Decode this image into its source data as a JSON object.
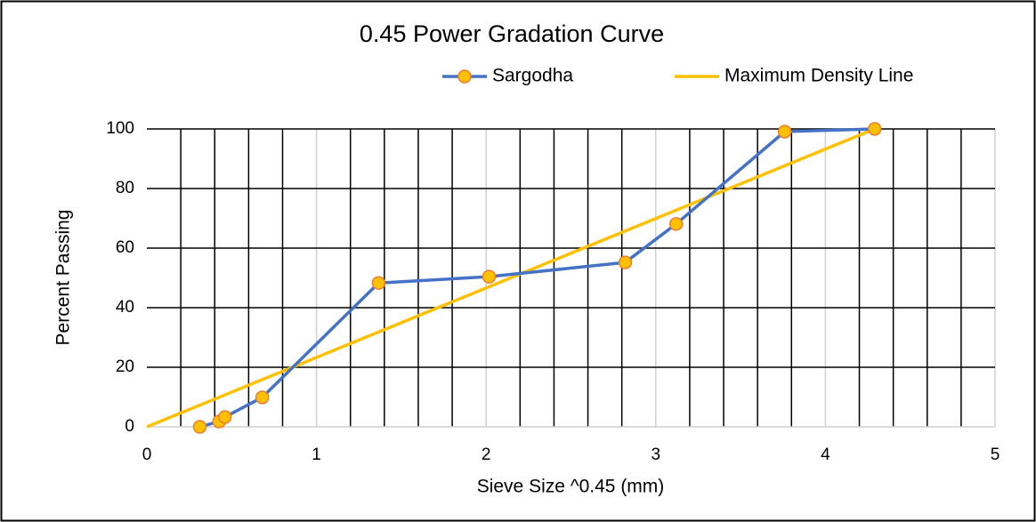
{
  "chart_data": {
    "type": "line",
    "title": "0.45 Power Gradation Curve",
    "xlabel": "Sieve Size ^0.45 (mm)",
    "ylabel": "Percent Passing",
    "series": [
      {
        "name": "Sargodha",
        "color": "#4472c4",
        "marker": true,
        "marker_color": "#ffc000",
        "marker_edge": "#ed7d31",
        "x": [
          0.312,
          0.426,
          0.46,
          0.68,
          1.366,
          2.017,
          2.82,
          3.12,
          3.76,
          4.29
        ],
        "values": [
          0,
          1.8,
          3.3,
          9.9,
          48.3,
          50.4,
          55.2,
          68.1,
          99.1,
          100
        ]
      },
      {
        "name": "Maximum Density Line",
        "color": "#ffc000",
        "marker": false,
        "x": [
          0,
          4.29
        ],
        "values": [
          0,
          100
        ]
      }
    ],
    "xlim": [
      0,
      5
    ],
    "xticks": [
      0,
      1,
      2,
      3,
      4,
      5
    ],
    "ylim": [
      0,
      100
    ],
    "yticks": [
      0,
      20,
      40,
      60,
      80,
      100
    ],
    "x_minor_per_major": 5,
    "grid": true,
    "legend": "top"
  }
}
